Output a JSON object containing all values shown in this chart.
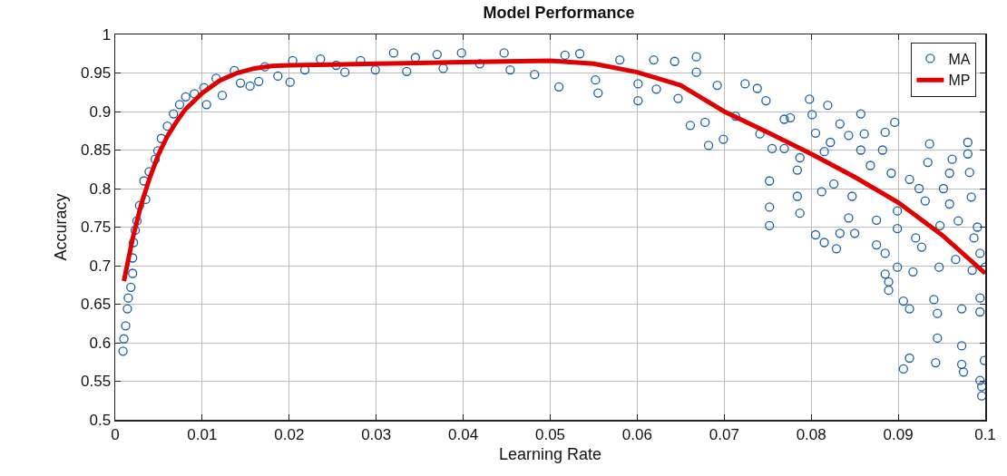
{
  "chart_data": {
    "type": "scatter",
    "title": "Model Performance",
    "xlabel": "Learning Rate",
    "ylabel": "Accuracy",
    "xlim": [
      0,
      0.1
    ],
    "xticks": [
      0,
      0.01,
      0.02,
      0.03,
      0.04,
      0.05,
      0.06,
      0.07,
      0.08,
      0.09,
      0.1
    ],
    "ylim": [
      0.5,
      1
    ],
    "yticks": [
      0.5,
      0.55,
      0.6,
      0.65,
      0.7,
      0.75,
      0.8,
      0.85,
      0.9,
      0.95,
      1
    ],
    "grid": true,
    "legend": "top right",
    "series": [
      {
        "name": "MA",
        "marker": "circle",
        "color": "#1a5fa6",
        "x": [
          0.0009,
          0.001,
          0.0012,
          0.0014,
          0.0015,
          0.0018,
          0.002,
          0.002,
          0.0021,
          0.0023,
          0.0025,
          0.0028,
          0.0035,
          0.0033,
          0.0039,
          0.0046,
          0.0049,
          0.0053,
          0.006,
          0.0067,
          0.0074,
          0.0081,
          0.0091,
          0.0102,
          0.0105,
          0.0116,
          0.0123,
          0.0137,
          0.0144,
          0.0155,
          0.0165,
          0.0172,
          0.0187,
          0.0201,
          0.0204,
          0.0218,
          0.0236,
          0.0254,
          0.0264,
          0.0282,
          0.0299,
          0.032,
          0.0335,
          0.0345,
          0.037,
          0.0377,
          0.0398,
          0.0419,
          0.0447,
          0.0454,
          0.0482,
          0.051,
          0.0517,
          0.0534,
          0.0555,
          0.0552,
          0.058,
          0.0601,
          0.0601,
          0.0619,
          0.0643,
          0.0668,
          0.0668,
          0.0622,
          0.0647,
          0.0661,
          0.0682,
          0.0678,
          0.0699,
          0.0692,
          0.0724,
          0.0713,
          0.0738,
          0.0748,
          0.0752,
          0.0752,
          0.0752,
          0.0755,
          0.0741,
          0.0769,
          0.0776,
          0.0769,
          0.0787,
          0.0784,
          0.0784,
          0.0787,
          0.0798,
          0.0801,
          0.0805,
          0.0805,
          0.0815,
          0.0819,
          0.0815,
          0.0822,
          0.0829,
          0.0833,
          0.0826,
          0.0812,
          0.0833,
          0.0843,
          0.0843,
          0.0847,
          0.085,
          0.0857,
          0.0857,
          0.0861,
          0.0868,
          0.0875,
          0.0875,
          0.0882,
          0.0885,
          0.0885,
          0.0892,
          0.0896,
          0.0885,
          0.0889,
          0.0889,
          0.0899,
          0.0899,
          0.0899,
          0.0906,
          0.0913,
          0.0906,
          0.0913,
          0.0917,
          0.0913,
          0.0924,
          0.092,
          0.0927,
          0.0931,
          0.0934,
          0.0936,
          0.0941,
          0.0945,
          0.0945,
          0.0943,
          0.0947,
          0.0948,
          0.0952,
          0.0959,
          0.0959,
          0.0962,
          0.0966,
          0.0969,
          0.0973,
          0.0973,
          0.0973,
          0.0975,
          0.098,
          0.098,
          0.0982,
          0.0984,
          0.0987,
          0.0985,
          0.0991,
          0.0994,
          0.0994,
          0.0994,
          0.0996,
          0.0996,
          0.0999,
          0.1,
          0.0994
        ],
        "values": [
          0.589,
          0.605,
          0.622,
          0.644,
          0.658,
          0.672,
          0.69,
          0.71,
          0.73,
          0.746,
          0.758,
          0.778,
          0.786,
          0.81,
          0.822,
          0.838,
          0.849,
          0.865,
          0.881,
          0.897,
          0.909,
          0.919,
          0.923,
          0.931,
          0.909,
          0.943,
          0.921,
          0.953,
          0.937,
          0.933,
          0.939,
          0.958,
          0.946,
          0.938,
          0.966,
          0.954,
          0.968,
          0.96,
          0.951,
          0.966,
          0.954,
          0.976,
          0.952,
          0.97,
          0.974,
          0.956,
          0.976,
          0.962,
          0.976,
          0.954,
          0.948,
          0.932,
          0.973,
          0.975,
          0.924,
          0.941,
          0.967,
          0.914,
          0.936,
          0.967,
          0.965,
          0.971,
          0.951,
          0.929,
          0.917,
          0.882,
          0.856,
          0.886,
          0.864,
          0.934,
          0.936,
          0.894,
          0.93,
          0.914,
          0.81,
          0.776,
          0.752,
          0.852,
          0.871,
          0.89,
          0.892,
          0.852,
          0.84,
          0.824,
          0.79,
          0.768,
          0.916,
          0.896,
          0.872,
          0.74,
          0.73,
          0.908,
          0.848,
          0.86,
          0.722,
          0.742,
          0.806,
          0.796,
          0.884,
          0.869,
          0.762,
          0.79,
          0.742,
          0.897,
          0.85,
          0.871,
          0.83,
          0.759,
          0.727,
          0.85,
          0.716,
          0.873,
          0.82,
          0.886,
          0.689,
          0.679,
          0.668,
          0.698,
          0.771,
          0.748,
          0.566,
          0.58,
          0.654,
          0.644,
          0.692,
          0.812,
          0.8,
          0.736,
          0.724,
          0.784,
          0.834,
          0.858,
          0.656,
          0.638,
          0.606,
          0.574,
          0.698,
          0.752,
          0.8,
          0.78,
          0.82,
          0.838,
          0.708,
          0.758,
          0.644,
          0.596,
          0.572,
          0.562,
          0.86,
          0.845,
          0.821,
          0.789,
          0.736,
          0.694,
          0.75,
          0.658,
          0.64,
          0.551,
          0.543,
          0.531,
          0.577,
          0.698,
          0.716
        ]
      },
      {
        "name": "MP",
        "type": "line",
        "line_style": "solid",
        "color": "#e00000",
        "x": [
          0.001,
          0.002,
          0.003,
          0.004,
          0.005,
          0.006,
          0.007,
          0.008,
          0.01,
          0.012,
          0.014,
          0.016,
          0.018,
          0.02,
          0.025,
          0.03,
          0.035,
          0.04,
          0.045,
          0.05,
          0.055,
          0.06,
          0.065,
          0.07,
          0.075,
          0.08,
          0.085,
          0.09,
          0.095,
          0.1
        ],
        "values": [
          0.68,
          0.735,
          0.78,
          0.815,
          0.845,
          0.868,
          0.886,
          0.902,
          0.924,
          0.94,
          0.95,
          0.956,
          0.959,
          0.96,
          0.961,
          0.962,
          0.963,
          0.964,
          0.965,
          0.966,
          0.962,
          0.951,
          0.934,
          0.9,
          0.873,
          0.845,
          0.815,
          0.782,
          0.74,
          0.69
        ]
      }
    ]
  }
}
